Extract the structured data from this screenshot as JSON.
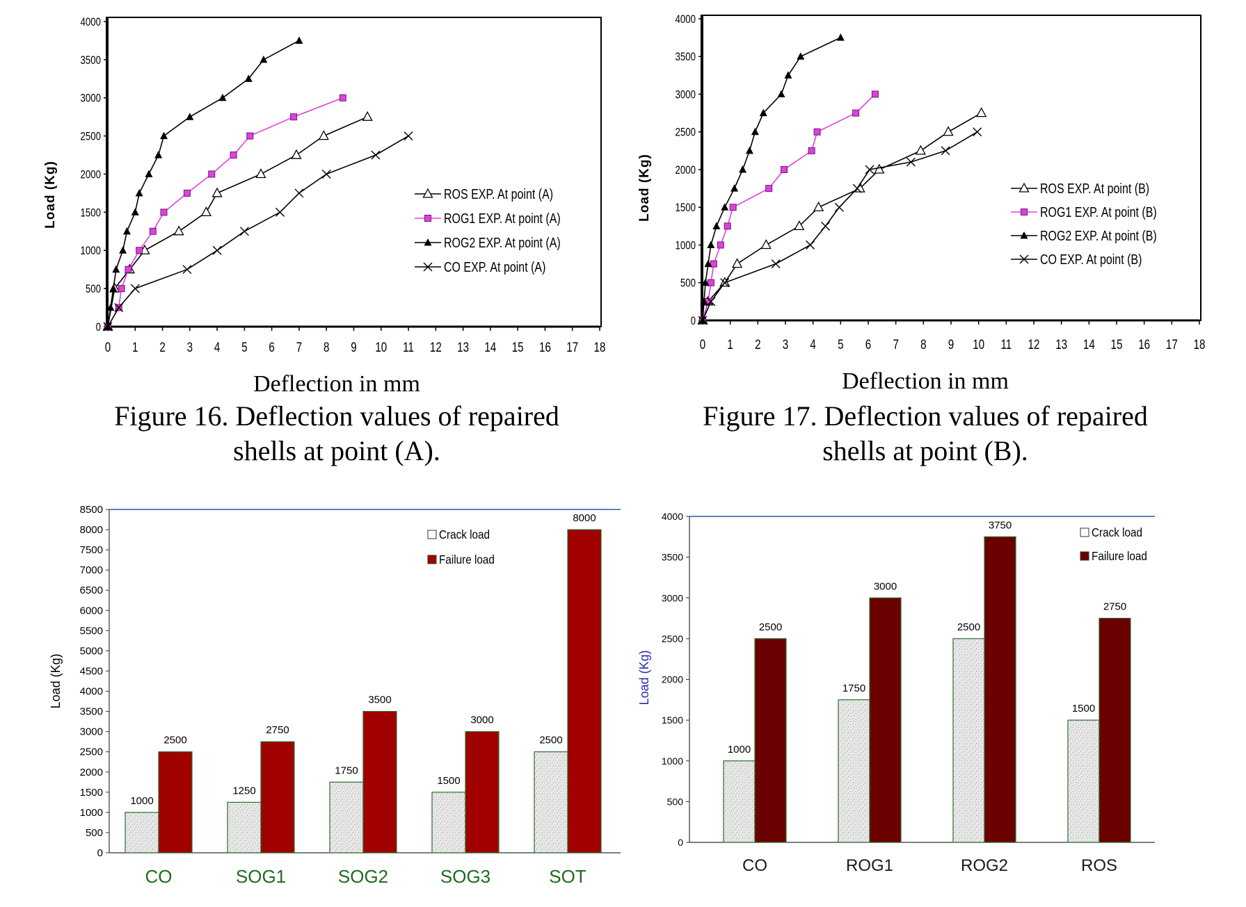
{
  "chart_data": [
    {
      "id": "fig16",
      "type": "line",
      "xlabel": "Deflection in mm",
      "ylabel": "Load  (Kg)",
      "xlim": [
        0,
        18
      ],
      "ylim": [
        0,
        4000
      ],
      "xticks": [
        "0",
        "1",
        "2",
        "3",
        "4",
        "5",
        "6",
        "7",
        "8",
        "9",
        "10",
        "11",
        "12",
        "13",
        "14",
        "15",
        "16",
        "17",
        "18"
      ],
      "yticks": [
        "0",
        "500",
        "1000",
        "1500",
        "2000",
        "2500",
        "3000",
        "3500",
        "4000"
      ],
      "caption": [
        "Figure 16. Deflection values of repaired",
        "shells at point (A)."
      ],
      "legend_position": "right",
      "series": [
        {
          "name": "ROS  EXP.  At point (A)",
          "marker": "triangle-open",
          "color": "#000000",
          "points": [
            [
              0,
              0
            ],
            [
              0.25,
              500
            ],
            [
              0.8,
              750
            ],
            [
              1.35,
              1000
            ],
            [
              2.6,
              1250
            ],
            [
              3.6,
              1500
            ],
            [
              4.0,
              1750
            ],
            [
              5.6,
              2000
            ],
            [
              6.9,
              2250
            ],
            [
              7.9,
              2500
            ],
            [
              9.5,
              2750
            ]
          ]
        },
        {
          "name": "ROG1  EXP.  At point (A)",
          "marker": "square-filled",
          "color": "#e040e0",
          "points": [
            [
              0,
              0
            ],
            [
              0.4,
              250
            ],
            [
              0.5,
              500
            ],
            [
              0.75,
              750
            ],
            [
              1.15,
              1000
            ],
            [
              1.65,
              1250
            ],
            [
              2.05,
              1500
            ],
            [
              2.9,
              1750
            ],
            [
              3.8,
              2000
            ],
            [
              4.6,
              2250
            ],
            [
              5.2,
              2500
            ],
            [
              6.8,
              2750
            ],
            [
              8.6,
              3000
            ]
          ]
        },
        {
          "name": "ROG2  EXP.  At point (A)",
          "marker": "triangle-filled",
          "color": "#000000",
          "points": [
            [
              0,
              0
            ],
            [
              0.1,
              250
            ],
            [
              0.2,
              500
            ],
            [
              0.3,
              750
            ],
            [
              0.55,
              1000
            ],
            [
              0.7,
              1250
            ],
            [
              1.0,
              1500
            ],
            [
              1.15,
              1750
            ],
            [
              1.5,
              2000
            ],
            [
              1.85,
              2250
            ],
            [
              2.05,
              2500
            ],
            [
              3.0,
              2750
            ],
            [
              4.2,
              3000
            ],
            [
              5.15,
              3250
            ],
            [
              5.7,
              3500
            ],
            [
              7.0,
              3750
            ]
          ]
        },
        {
          "name": "CO EXP.  At point (A)",
          "marker": "x",
          "color": "#000000",
          "points": [
            [
              0,
              0
            ],
            [
              0.4,
              250
            ],
            [
              1.0,
              500
            ],
            [
              2.9,
              750
            ],
            [
              4.0,
              1000
            ],
            [
              5.0,
              1250
            ],
            [
              6.3,
              1500
            ],
            [
              7.0,
              1750
            ],
            [
              8.0,
              2000
            ],
            [
              9.8,
              2250
            ],
            [
              11.0,
              2500
            ]
          ]
        }
      ]
    },
    {
      "id": "fig17",
      "type": "line",
      "xlabel": "Deflection in mm",
      "ylabel": "Load  (Kg)",
      "xlim": [
        0,
        18
      ],
      "ylim": [
        0,
        4000
      ],
      "xticks": [
        "0",
        "1",
        "2",
        "3",
        "4",
        "5",
        "6",
        "7",
        "8",
        "9",
        "10",
        "11",
        "12",
        "13",
        "14",
        "15",
        "16",
        "17",
        "18"
      ],
      "yticks": [
        "0",
        "500",
        "1000",
        "1500",
        "2000",
        "2500",
        "3000",
        "3500",
        "4000"
      ],
      "caption": [
        "Figure 17. Deflection values of repaired",
        "shells at point (B)."
      ],
      "legend_position": "right",
      "series": [
        {
          "name": "ROS  EXP.  At point (B)",
          "marker": "triangle-open",
          "color": "#000000",
          "points": [
            [
              0,
              0
            ],
            [
              0.2,
              250
            ],
            [
              0.8,
              500
            ],
            [
              1.25,
              750
            ],
            [
              2.3,
              1000
            ],
            [
              3.5,
              1250
            ],
            [
              4.2,
              1500
            ],
            [
              5.7,
              1750
            ],
            [
              6.4,
              2000
            ],
            [
              7.9,
              2250
            ],
            [
              8.9,
              2500
            ],
            [
              10.1,
              2750
            ]
          ]
        },
        {
          "name": "ROG1  EXP.  At point (B)",
          "marker": "square-filled",
          "color": "#e040e0",
          "points": [
            [
              0,
              0
            ],
            [
              0.2,
              250
            ],
            [
              0.3,
              500
            ],
            [
              0.4,
              750
            ],
            [
              0.65,
              1000
            ],
            [
              0.9,
              1250
            ],
            [
              1.1,
              1500
            ],
            [
              2.4,
              1750
            ],
            [
              2.95,
              2000
            ],
            [
              3.95,
              2250
            ],
            [
              4.15,
              2500
            ],
            [
              5.55,
              2750
            ],
            [
              6.25,
              3000
            ]
          ]
        },
        {
          "name": "ROG2  EXP.  At point (B)",
          "marker": "triangle-filled",
          "color": "#000000",
          "points": [
            [
              0,
              0
            ],
            [
              0.05,
              250
            ],
            [
              0.1,
              500
            ],
            [
              0.2,
              750
            ],
            [
              0.3,
              1000
            ],
            [
              0.5,
              1250
            ],
            [
              0.8,
              1500
            ],
            [
              1.15,
              1750
            ],
            [
              1.45,
              2000
            ],
            [
              1.7,
              2250
            ],
            [
              1.9,
              2500
            ],
            [
              2.2,
              2750
            ],
            [
              2.85,
              3000
            ],
            [
              3.1,
              3250
            ],
            [
              3.55,
              3500
            ],
            [
              5.0,
              3750
            ]
          ]
        },
        {
          "name": "CO EXP.  At point (B)",
          "marker": "x",
          "color": "#000000",
          "points": [
            [
              0,
              0
            ],
            [
              0.3,
              250
            ],
            [
              0.8,
              500
            ],
            [
              2.65,
              750
            ],
            [
              3.9,
              1000
            ],
            [
              4.45,
              1250
            ],
            [
              4.95,
              1500
            ],
            [
              5.6,
              1750
            ],
            [
              6.05,
              2000
            ],
            [
              7.55,
              2100
            ],
            [
              8.8,
              2250
            ],
            [
              9.95,
              2500
            ]
          ]
        }
      ]
    },
    {
      "id": "barA",
      "type": "bar",
      "categories": [
        "CO",
        "SOG1",
        "SOG2",
        "SOG3",
        "SOT"
      ],
      "series": [
        {
          "name": "Crack load",
          "values": [
            1000,
            1250,
            1750,
            1500,
            2500
          ]
        },
        {
          "name": "Failure load",
          "values": [
            2500,
            2750,
            3500,
            3000,
            8000
          ]
        }
      ],
      "ylabel": "Load  (Kg)",
      "ylim": [
        0,
        8500
      ],
      "yticks": [
        "0",
        "500",
        "1000",
        "1500",
        "2000",
        "2500",
        "3000",
        "3500",
        "4000",
        "4500",
        "5000",
        "5500",
        "6000",
        "6500",
        "7000",
        "7500",
        "8000",
        "8500"
      ],
      "data_labels": [
        [
          "1000",
          "1250",
          "1750",
          "1500",
          "2500"
        ],
        [
          "2500",
          "2750",
          "3500",
          "3000",
          "8000"
        ]
      ],
      "legend_position": "top-right"
    },
    {
      "id": "barB",
      "type": "bar",
      "categories": [
        "CO",
        "ROG1",
        "ROG2",
        "ROS"
      ],
      "series": [
        {
          "name": "Crack load",
          "values": [
            1000,
            1750,
            2500,
            1500
          ]
        },
        {
          "name": "Failure load",
          "values": [
            2500,
            3000,
            3750,
            2750
          ]
        }
      ],
      "ylabel": "Load  (Kg)",
      "ylim": [
        0,
        4000
      ],
      "yticks": [
        "0",
        "500",
        "1000",
        "1500",
        "2000",
        "2500",
        "3000",
        "3500",
        "4000"
      ],
      "data_labels": [
        [
          "1000",
          "1750",
          "2500",
          "1500"
        ],
        [
          "2500",
          "3000",
          "3750",
          "2750"
        ]
      ],
      "legend_position": "top-right"
    }
  ],
  "colors": {
    "failure_bar_a": "#a00000",
    "failure_bar_b": "#6b0000",
    "crack_bar": "#e6e6e6",
    "category_a": "#1f6b1f",
    "category_b": "#1a1a1a",
    "ylabel_b": "#2a2ab0",
    "axis_top_line": "#3355aa",
    "rog1_line": "#e040e0"
  }
}
